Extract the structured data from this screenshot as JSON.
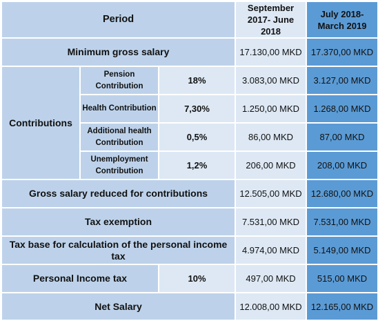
{
  "table": {
    "header": {
      "period": "Period",
      "col1": "September 2017- June 2018",
      "col2": "July 2018- March 2019"
    },
    "min_gross": {
      "label": "Minimum gross salary",
      "v1": "17.130,00 MKD",
      "v2": "17.370,00 MKD"
    },
    "contributions": {
      "label": "Contributions",
      "items": [
        {
          "label": "Pension Contribution",
          "rate": "18%",
          "v1": "3.083,00 MKD",
          "v2": "3.127,00 MKD"
        },
        {
          "label": "Health Contribution",
          "rate": "7,30%",
          "v1": "1.250,00 MKD",
          "v2": "1.268,00 MKD"
        },
        {
          "label": "Additional health Contribution",
          "rate": "0,5%",
          "v1": "86,00 MKD",
          "v2": "87,00 MKD"
        },
        {
          "label": "Unemployment Contribution",
          "rate": "1,2%",
          "v1": "206,00 MKD",
          "v2": "208,00 MKD"
        }
      ]
    },
    "gross_reduced": {
      "label": "Gross salary reduced for contributions",
      "v1": "12.505,00 MKD",
      "v2": "12.680,00 MKD"
    },
    "tax_exemption": {
      "label": "Tax exemption",
      "v1": "7.531,00 MKD",
      "v2": "7.531,00 MKD"
    },
    "tax_base": {
      "label": "Tax base for calculation of the personal income tax",
      "v1": "4.974,00 MKD",
      "v2": "5.149,00 MKD"
    },
    "income_tax": {
      "label": "Personal Income tax",
      "rate": "10%",
      "v1": "497,00 MKD",
      "v2": "515,00 MKD"
    },
    "net_salary": {
      "label": "Net Salary",
      "v1": "12.008,00 MKD",
      "v2": "12.165,00 MKD"
    }
  }
}
